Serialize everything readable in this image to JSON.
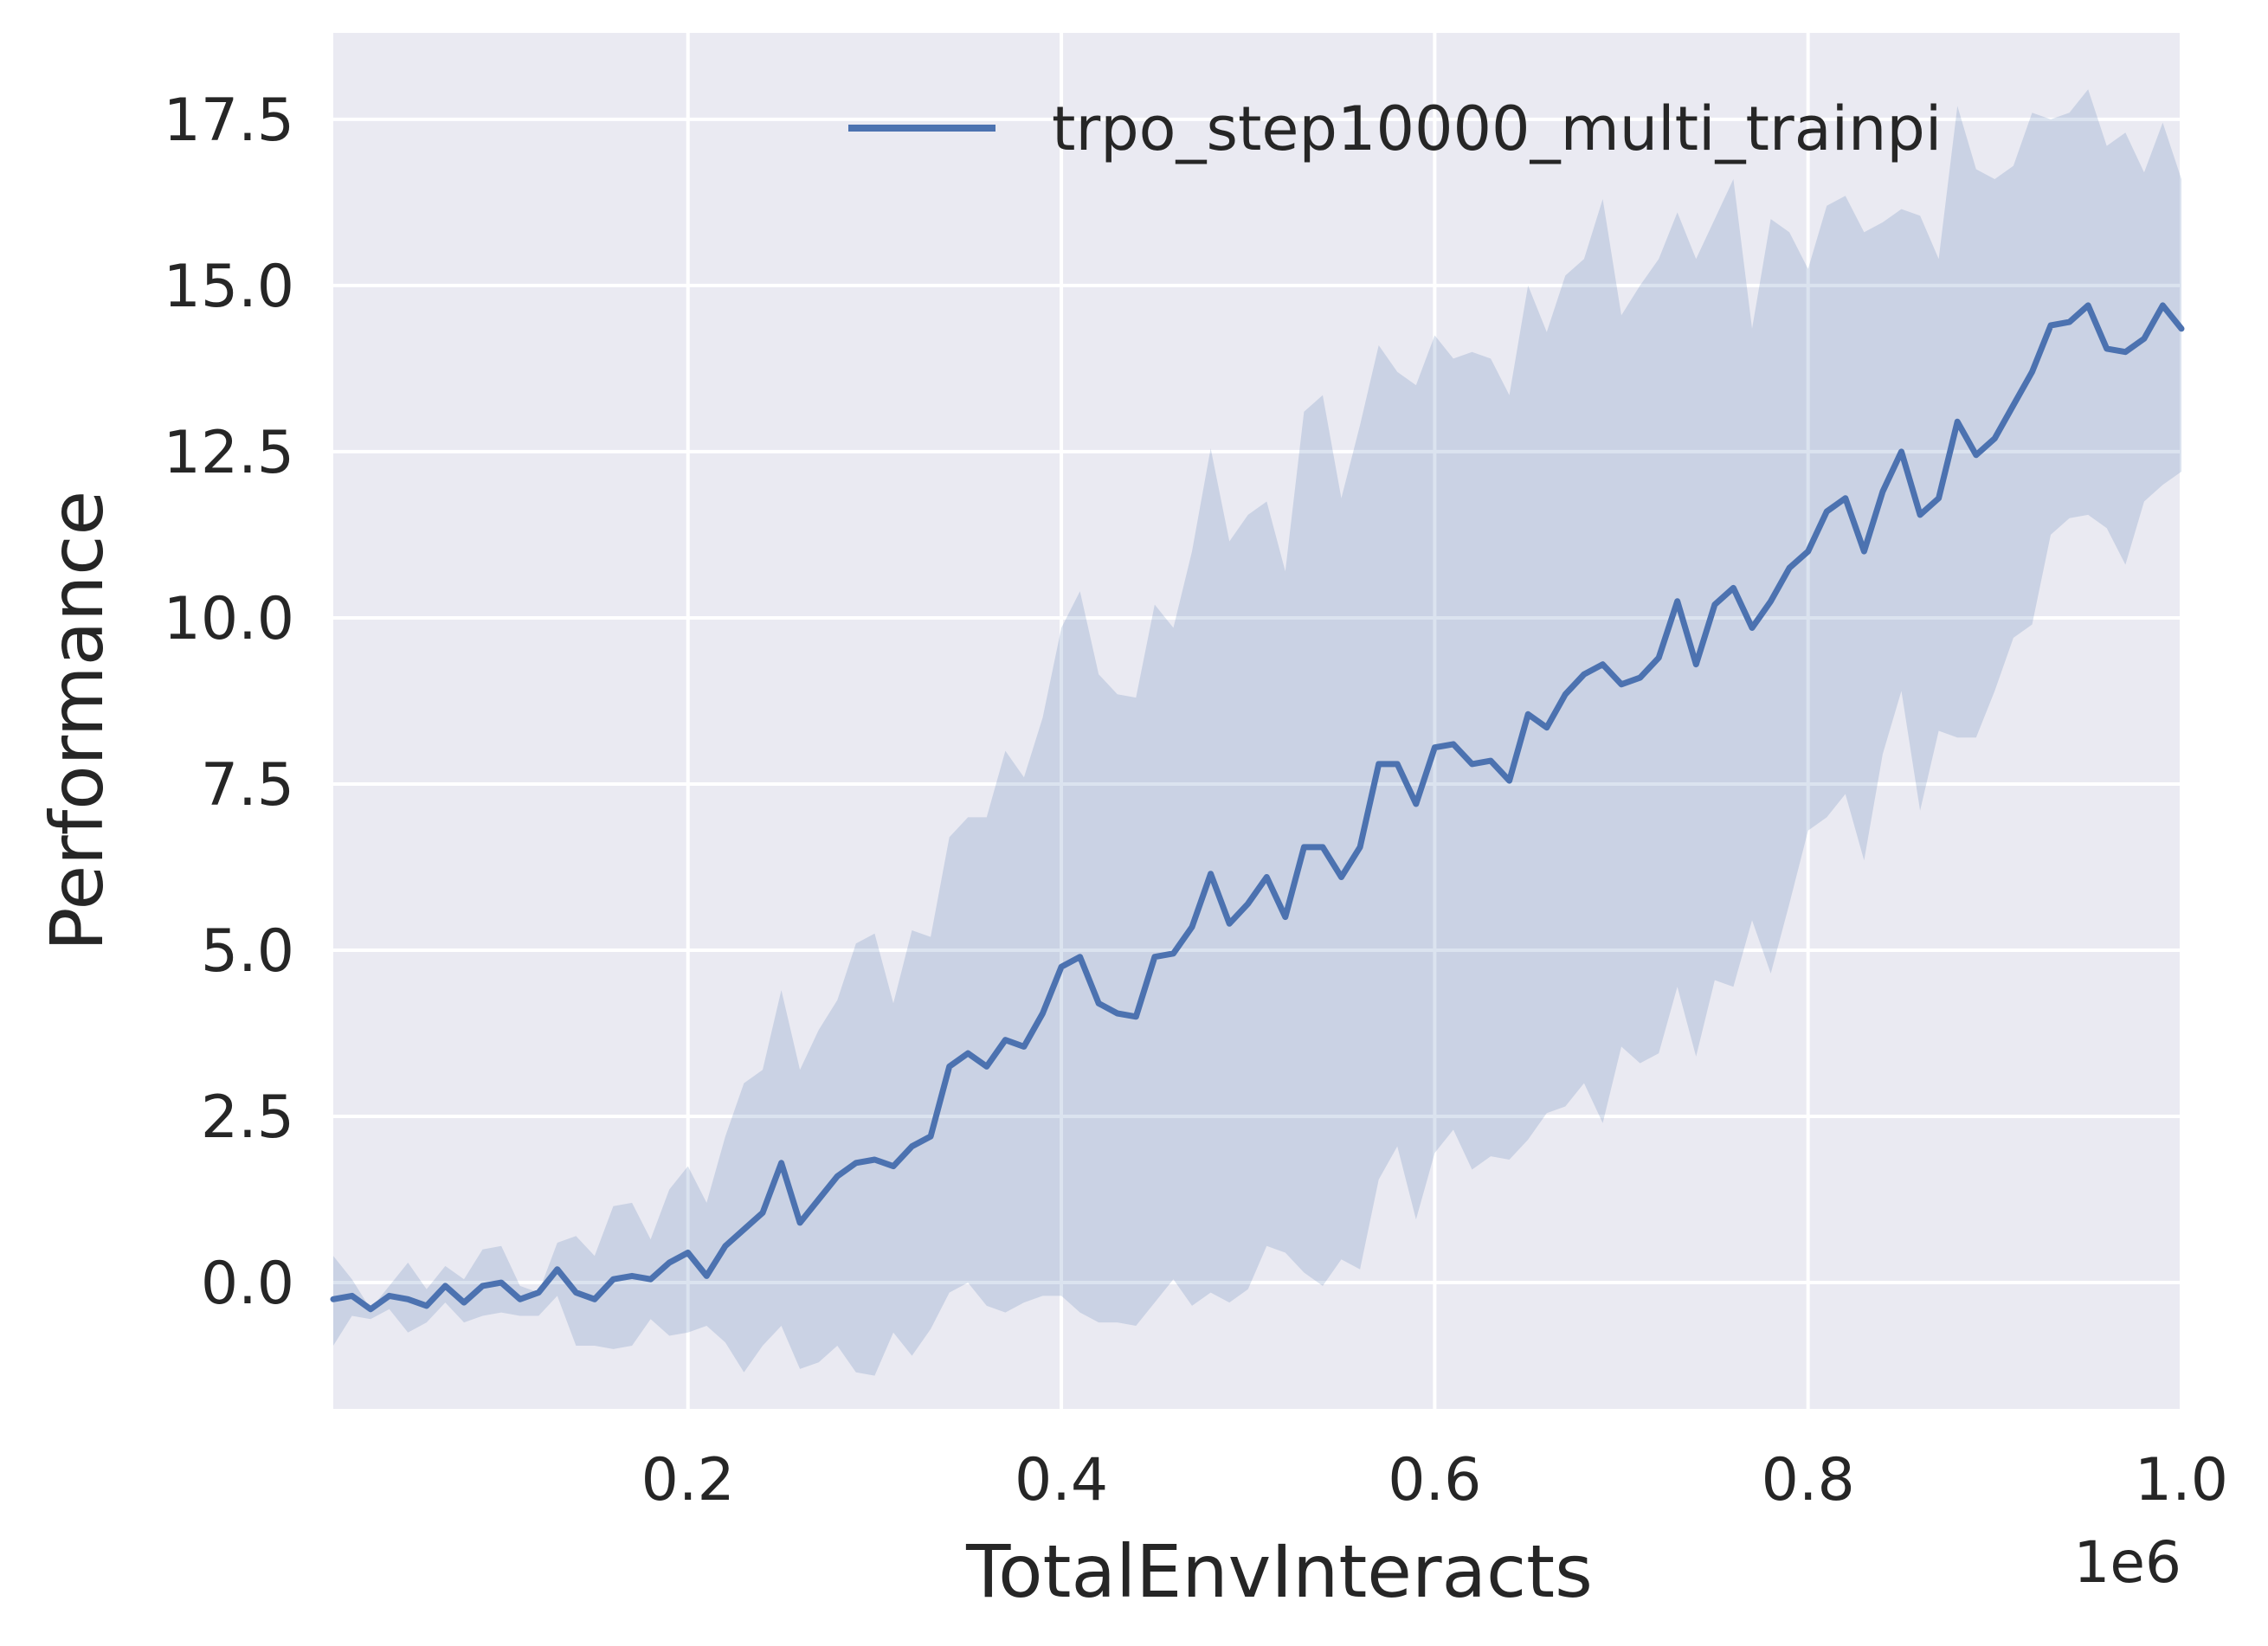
{
  "chart_data": {
    "type": "line",
    "title": "",
    "xlabel": "TotalEnvInteracts",
    "ylabel": "Performance",
    "x_offset_label": "1e6",
    "xlim": [
      10000,
      1000000
    ],
    "ylim": [
      -1.9,
      18.8
    ],
    "xticks": [
      200000,
      400000,
      600000,
      800000,
      1000000
    ],
    "xtick_labels": [
      "0.2",
      "0.4",
      "0.6",
      "0.8",
      "1.0"
    ],
    "yticks": [
      0,
      2.5,
      5,
      7.5,
      10,
      12.5,
      15,
      17.5
    ],
    "ytick_labels": [
      "0.0",
      "2.5",
      "5.0",
      "7.5",
      "10.0",
      "12.5",
      "15.0",
      "17.5"
    ],
    "grid": true,
    "legend_position": "top-right",
    "colors": {
      "background": "#eaeaf2",
      "grid": "#ffffff",
      "line": "#4c72b0",
      "band": "#4c72b0"
    },
    "series": [
      {
        "name": "trpo_step10000_multi_trainpi",
        "x": [
          10000,
          20000,
          30000,
          40000,
          50000,
          60000,
          70000,
          80000,
          90000,
          100000,
          110000,
          120000,
          130000,
          140000,
          150000,
          160000,
          170000,
          180000,
          190000,
          200000,
          210000,
          220000,
          230000,
          240000,
          250000,
          260000,
          270000,
          280000,
          290000,
          300000,
          310000,
          320000,
          330000,
          340000,
          350000,
          360000,
          370000,
          380000,
          390000,
          400000,
          410000,
          420000,
          430000,
          440000,
          450000,
          460000,
          470000,
          480000,
          490000,
          500000,
          510000,
          520000,
          530000,
          540000,
          550000,
          560000,
          570000,
          580000,
          590000,
          600000,
          610000,
          620000,
          630000,
          640000,
          650000,
          660000,
          670000,
          680000,
          690000,
          700000,
          710000,
          720000,
          730000,
          740000,
          750000,
          760000,
          770000,
          780000,
          790000,
          800000,
          810000,
          820000,
          830000,
          840000,
          850000,
          860000,
          870000,
          880000,
          890000,
          900000,
          910000,
          920000,
          930000,
          940000,
          950000,
          960000,
          970000,
          980000,
          990000,
          1000000
        ],
        "mean": [
          -0.25,
          -0.2,
          -0.4,
          -0.2,
          -0.25,
          -0.35,
          -0.05,
          -0.3,
          -0.05,
          0.0,
          -0.25,
          -0.15,
          0.2,
          -0.15,
          -0.25,
          0.05,
          0.1,
          0.05,
          0.3,
          0.45,
          0.1,
          0.55,
          0.8,
          1.05,
          1.8,
          0.9,
          1.25,
          1.6,
          1.8,
          1.85,
          1.75,
          2.05,
          2.2,
          3.25,
          3.45,
          3.25,
          3.65,
          3.55,
          4.05,
          4.75,
          4.9,
          4.2,
          4.05,
          4.0,
          4.9,
          4.95,
          5.35,
          6.15,
          5.4,
          5.7,
          6.1,
          5.5,
          6.55,
          6.55,
          6.1,
          6.55,
          7.8,
          7.8,
          7.2,
          8.05,
          8.1,
          7.8,
          7.85,
          7.55,
          8.55,
          8.35,
          8.85,
          9.15,
          9.3,
          9.0,
          9.1,
          9.4,
          10.25,
          9.3,
          10.2,
          10.45,
          9.85,
          10.25,
          10.75,
          11.0,
          11.6,
          11.8,
          11.0,
          11.9,
          12.5,
          11.55,
          11.8,
          12.95,
          12.45,
          12.7,
          13.2,
          13.7,
          14.4,
          14.45,
          14.7,
          14.05,
          14.0,
          14.2,
          14.7,
          14.35
        ],
        "upper": [
          0.4,
          0.05,
          -0.4,
          -0.05,
          0.3,
          -0.1,
          0.25,
          0.05,
          0.5,
          0.55,
          -0.05,
          -0.15,
          0.6,
          0.7,
          0.4,
          1.15,
          1.2,
          0.65,
          1.4,
          1.75,
          1.2,
          2.2,
          3.0,
          3.2,
          4.4,
          3.2,
          3.8,
          4.25,
          5.1,
          5.25,
          4.2,
          5.3,
          5.2,
          6.7,
          7.0,
          7.0,
          8.0,
          7.6,
          8.5,
          9.85,
          10.4,
          9.15,
          8.85,
          8.8,
          10.2,
          9.85,
          11.0,
          12.55,
          11.15,
          11.55,
          11.75,
          10.7,
          13.1,
          13.35,
          11.8,
          12.9,
          14.1,
          13.7,
          13.5,
          14.25,
          13.9,
          14.0,
          13.9,
          13.35,
          15.0,
          14.3,
          15.15,
          15.4,
          16.3,
          14.55,
          15.0,
          15.4,
          16.1,
          15.4,
          16.0,
          16.6,
          14.35,
          16.0,
          15.8,
          15.25,
          16.2,
          16.35,
          15.8,
          15.95,
          16.15,
          16.05,
          15.4,
          17.7,
          16.75,
          16.6,
          16.8,
          17.6,
          17.5,
          17.6,
          17.95,
          17.1,
          17.3,
          16.7,
          17.45,
          16.6
        ],
        "lower": [
          -0.95,
          -0.5,
          -0.55,
          -0.4,
          -0.75,
          -0.6,
          -0.3,
          -0.6,
          -0.5,
          -0.45,
          -0.5,
          -0.5,
          -0.2,
          -0.95,
          -0.95,
          -1.0,
          -0.95,
          -0.55,
          -0.8,
          -0.75,
          -0.65,
          -0.9,
          -1.35,
          -0.95,
          -0.65,
          -1.3,
          -1.2,
          -0.95,
          -1.35,
          -1.4,
          -0.75,
          -1.1,
          -0.7,
          -0.15,
          0.0,
          -0.35,
          -0.45,
          -0.3,
          -0.2,
          -0.2,
          -0.45,
          -0.6,
          -0.6,
          -0.65,
          -0.3,
          0.05,
          -0.35,
          -0.15,
          -0.3,
          -0.1,
          0.55,
          0.45,
          0.15,
          -0.05,
          0.35,
          0.2,
          1.55,
          2.05,
          0.95,
          1.95,
          2.3,
          1.7,
          1.9,
          1.85,
          2.15,
          2.55,
          2.65,
          3.0,
          2.4,
          3.55,
          3.3,
          3.45,
          4.45,
          3.4,
          4.55,
          4.45,
          5.45,
          4.65,
          5.7,
          6.8,
          7.0,
          7.35,
          6.35,
          7.95,
          8.9,
          7.1,
          8.3,
          8.2,
          8.2,
          8.9,
          9.7,
          9.9,
          11.25,
          11.5,
          11.55,
          11.35,
          10.8,
          11.75,
          12.0,
          12.2
        ]
      }
    ]
  }
}
